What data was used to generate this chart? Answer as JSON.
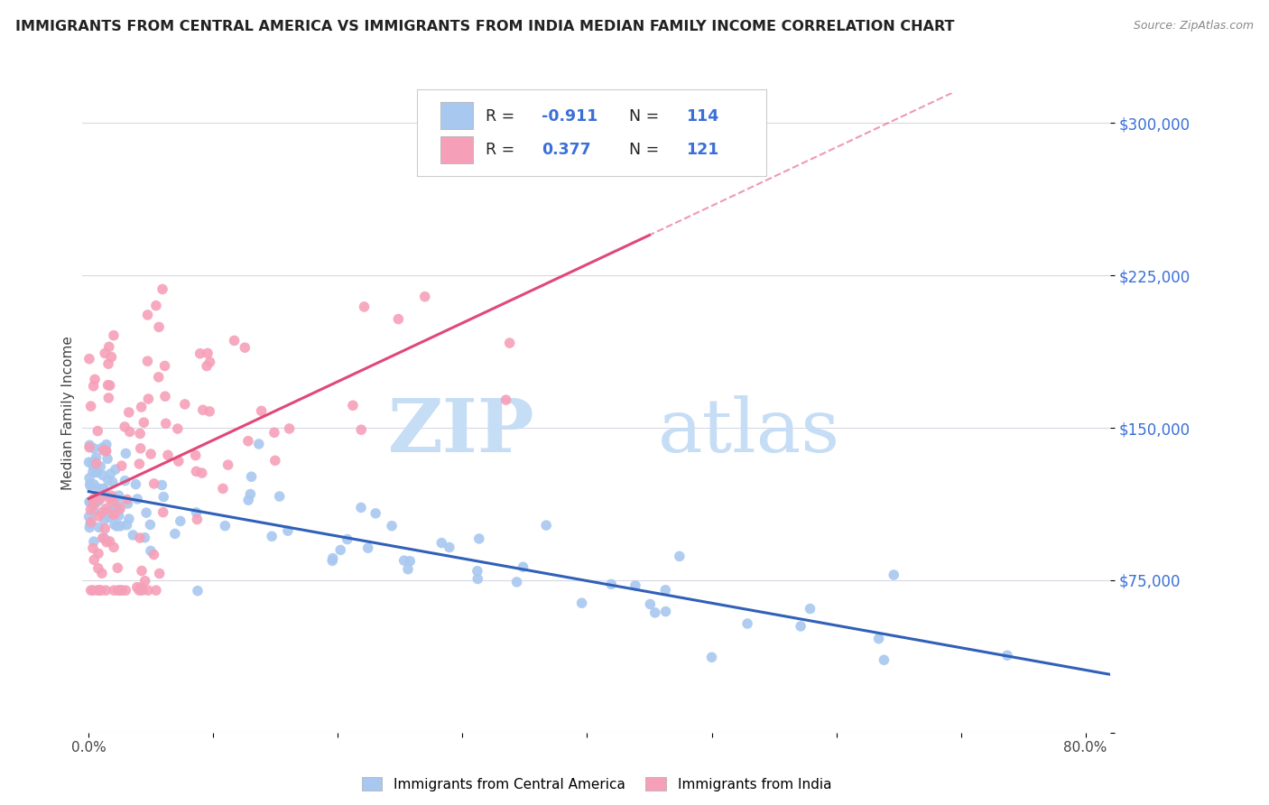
{
  "title": "IMMIGRANTS FROM CENTRAL AMERICA VS IMMIGRANTS FROM INDIA MEDIAN FAMILY INCOME CORRELATION CHART",
  "source": "Source: ZipAtlas.com",
  "ylabel": "Median Family Income",
  "yticks": [
    0,
    75000,
    150000,
    225000,
    300000
  ],
  "ytick_labels": [
    "",
    "$75,000",
    "$150,000",
    "$225,000",
    "$300,000"
  ],
  "xlim": [
    0.0,
    0.82
  ],
  "ylim": [
    0,
    315000
  ],
  "blue_R": -0.911,
  "blue_N": 114,
  "pink_R": 0.377,
  "pink_N": 121,
  "blue_color": "#a8c8f0",
  "pink_color": "#f5a0b8",
  "blue_line_color": "#3060b8",
  "pink_line_color": "#e04878",
  "watermark_zip": "ZIP",
  "watermark_atlas": "atlas",
  "watermark_color": "#c5ddf5",
  "title_color": "#222222",
  "title_fontsize": 11.5,
  "axis_label_color": "#3a6fd8",
  "grid_color": "#d8d8e8",
  "background_color": "#ffffff",
  "blue_seed": 101,
  "pink_seed": 202
}
